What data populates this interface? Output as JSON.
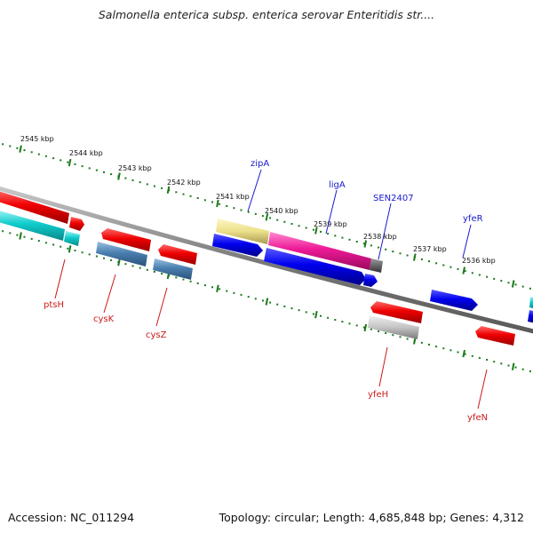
{
  "title": "Salmonella enterica subsp. enterica serovar Enteritidis str....",
  "footer": {
    "accession": "Accession: NC_011294",
    "summary": "Topology: circular; Length: 4,685,848 bp; Genes: 4,312"
  },
  "ruler": {
    "labels": [
      "2545 kbp",
      "2544 kbp",
      "2543 kbp",
      "2542 kbp",
      "2541 kbp",
      "2540 kbp",
      "2539 kbp",
      "2538 kbp",
      "2537 kbp",
      "2536 kbp"
    ]
  },
  "genes": {
    "top": [
      "zipA",
      "ligA",
      "SEN2407",
      "yfeR"
    ],
    "bottom": [
      "ptsH",
      "cysK",
      "cysZ",
      "yfeH",
      "yfeN"
    ]
  },
  "colors": {
    "top_label": "#1a1acc",
    "bottom_label": "#cc1a1a",
    "backbone": "#8a8a8a",
    "tick": "#1a7a1a"
  }
}
